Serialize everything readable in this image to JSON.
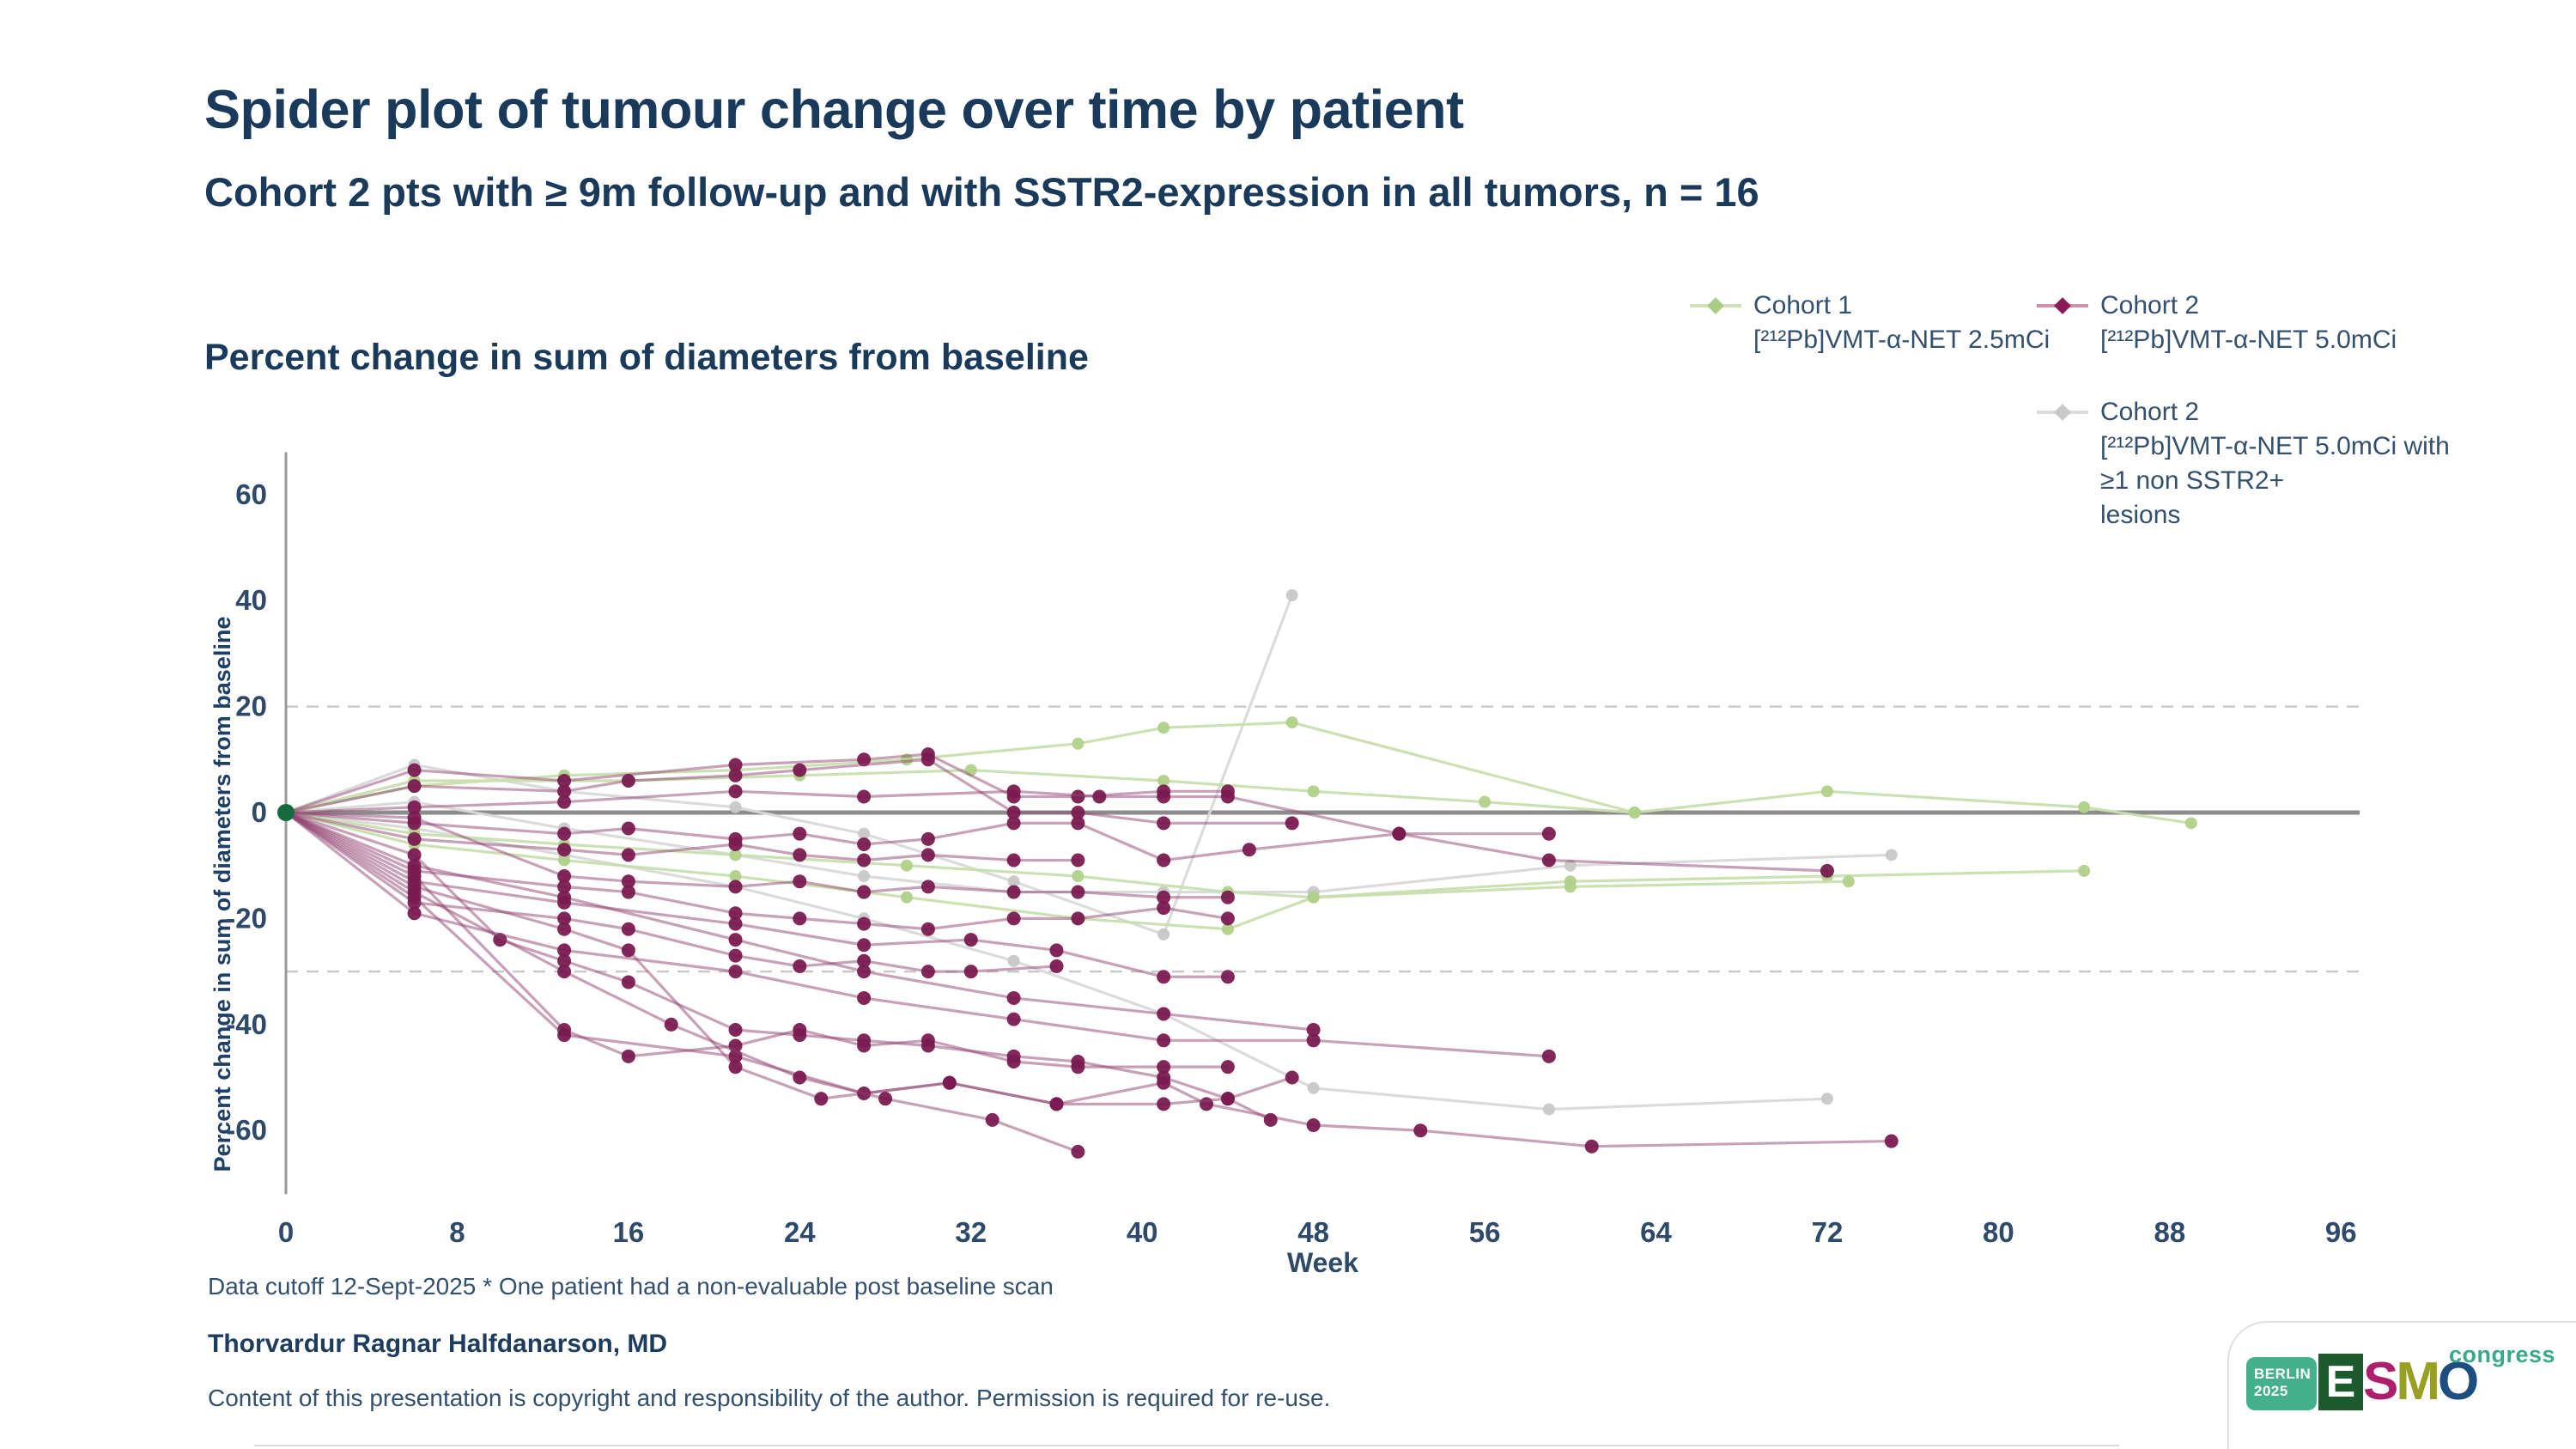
{
  "slide": {
    "title": "Spider plot of tumour change over time by patient",
    "subtitle": "Cohort 2 pts with ≥ 9m follow-up and with SSTR2-expression in all tumors, n = 16",
    "chart_heading": "Percent change in sum of diameters from baseline"
  },
  "legend": {
    "items": [
      {
        "name": "Cohort 1",
        "desc": "[²¹²Pb]VMT-α-NET 2.5mCi",
        "marker": {
          "line": "#cfe3b8",
          "dot": "#a9cc85"
        }
      },
      {
        "name": "Cohort 2",
        "desc": "[²¹²Pb]VMT-α-NET 5.0mCi",
        "marker": {
          "line": "#cf8fae",
          "dot": "#8d1a56"
        }
      },
      {
        "name": "Cohort 2",
        "desc": "[²¹²Pb]VMT-α-NET 5.0mCi with\n≥1 non SSTR2+\nlesions",
        "marker": {
          "line": "#dcdcdc",
          "dot": "#c9c9c9"
        }
      }
    ]
  },
  "footer": {
    "footnote": "Data cutoff 12-Sept-2025 * One patient had a non-evaluable post baseline scan",
    "author": "Thorvardur Ragnar Halfdanarson, MD",
    "copyright": "Content of this presentation is copyright and responsibility of the author. Permission is required for re-use."
  },
  "logo": {
    "badge_line1": "BERLIN",
    "badge_line2": "2025",
    "esmo_letters": [
      {
        "ch": "E",
        "color": "#ffffff",
        "bg": "#1d5a2e"
      },
      {
        "ch": "S",
        "color": "#ad1f6d"
      },
      {
        "ch": "M",
        "color": "#97a023"
      },
      {
        "ch": "O",
        "color": "#1c4e80"
      }
    ],
    "congress": "congress"
  },
  "chart_data": {
    "type": "line",
    "title": "Percent change in sum of diameters from baseline",
    "xlabel": "Week",
    "ylabel": "Percent change in sum of diameters from baseline",
    "xlim": [
      0,
      97
    ],
    "ylim": [
      -72,
      68
    ],
    "x_ticks": [
      0,
      8,
      16,
      24,
      32,
      40,
      48,
      56,
      64,
      72,
      80,
      88,
      96
    ],
    "y_ticks": [
      60,
      40,
      20,
      0,
      -20,
      -40,
      -60
    ],
    "reference_lines_dashed": [
      20,
      -30
    ],
    "zero_line": 0,
    "grid": "off",
    "legend_position": "top-right",
    "baseline_marker": {
      "week": 0,
      "value": 0,
      "color": "#156b3d"
    },
    "groups": [
      {
        "name": "Cohort 2 [212Pb]VMT-α-NET 5.0mCi with ≥1 non SSTR2+ lesions",
        "line_color": "#d9d9d9",
        "dot_color": "#c8c8c8",
        "line_opacity": 0.95,
        "series": [
          [
            [
              0,
              0
            ],
            [
              6,
              9
            ],
            [
              13,
              4
            ],
            [
              21,
              1
            ],
            [
              27,
              -4
            ],
            [
              34,
              -13
            ],
            [
              41,
              -23
            ],
            [
              47,
              41
            ]
          ],
          [
            [
              0,
              0
            ],
            [
              6,
              -3
            ],
            [
              13,
              -8
            ],
            [
              21,
              -14
            ],
            [
              27,
              -20
            ],
            [
              34,
              -28
            ],
            [
              41,
              -38
            ],
            [
              48,
              -52
            ],
            [
              59,
              -56
            ],
            [
              72,
              -54
            ]
          ],
          [
            [
              0,
              0
            ],
            [
              6,
              2
            ],
            [
              13,
              -3
            ],
            [
              21,
              -8
            ],
            [
              27,
              -12
            ],
            [
              34,
              -15
            ],
            [
              41,
              -15
            ],
            [
              48,
              -15
            ],
            [
              60,
              -10
            ],
            [
              75,
              -8
            ]
          ]
        ]
      },
      {
        "name": "Cohort 1 [212Pb]VMT-α-NET 2.5mCi",
        "line_color": "#c8dfae",
        "dot_color": "#b0d189",
        "line_opacity": 0.95,
        "series": [
          [
            [
              0,
              0
            ],
            [
              6,
              5
            ],
            [
              13,
              7
            ],
            [
              21,
              8
            ],
            [
              29,
              10
            ],
            [
              37,
              13
            ],
            [
              41,
              16
            ],
            [
              47,
              17
            ],
            [
              63,
              0
            ],
            [
              72,
              4
            ],
            [
              84,
              1
            ],
            [
              89,
              -2
            ]
          ],
          [
            [
              0,
              0
            ],
            [
              6,
              6
            ],
            [
              16,
              6
            ],
            [
              24,
              7
            ],
            [
              32,
              8
            ],
            [
              41,
              6
            ],
            [
              48,
              4
            ],
            [
              56,
              2
            ],
            [
              63,
              0
            ]
          ],
          [
            [
              0,
              0
            ],
            [
              6,
              -4
            ],
            [
              13,
              -6
            ],
            [
              21,
              -8
            ],
            [
              29,
              -10
            ],
            [
              37,
              -12
            ],
            [
              44,
              -15
            ],
            [
              48,
              -16
            ],
            [
              60,
              -13
            ],
            [
              72,
              -12
            ],
            [
              84,
              -11
            ]
          ],
          [
            [
              0,
              0
            ],
            [
              6,
              -6
            ],
            [
              13,
              -9
            ],
            [
              21,
              -12
            ],
            [
              29,
              -16
            ],
            [
              37,
              -20
            ],
            [
              44,
              -22
            ],
            [
              48,
              -16
            ],
            [
              60,
              -14
            ],
            [
              73,
              -13
            ]
          ]
        ]
      },
      {
        "name": "Cohort 2 [212Pb]VMT-α-NET 5.0mCi",
        "line_color": "#91416f",
        "dot_color": "#7a1b50",
        "line_opacity": 0.5,
        "series": [
          [
            [
              0,
              0
            ],
            [
              6,
              8
            ],
            [
              13,
              6
            ],
            [
              21,
              9
            ],
            [
              27,
              10
            ],
            [
              30,
              11
            ],
            [
              34,
              3
            ],
            [
              37,
              3
            ],
            [
              41,
              4
            ],
            [
              44,
              4
            ]
          ],
          [
            [
              0,
              0
            ],
            [
              6,
              5
            ],
            [
              13,
              4
            ],
            [
              16,
              6
            ],
            [
              21,
              7
            ],
            [
              24,
              8
            ],
            [
              30,
              10
            ],
            [
              34,
              0
            ],
            [
              37,
              0
            ],
            [
              41,
              -2
            ],
            [
              47,
              -2
            ]
          ],
          [
            [
              0,
              0
            ],
            [
              6,
              1
            ],
            [
              13,
              2
            ],
            [
              21,
              4
            ],
            [
              27,
              3
            ],
            [
              34,
              4
            ],
            [
              38,
              3
            ],
            [
              41,
              3
            ],
            [
              44,
              3
            ],
            [
              52,
              -4
            ],
            [
              59,
              -4
            ]
          ],
          [
            [
              0,
              0
            ],
            [
              6,
              -2
            ],
            [
              13,
              -4
            ],
            [
              16,
              -3
            ],
            [
              21,
              -5
            ],
            [
              24,
              -4
            ],
            [
              27,
              -6
            ],
            [
              30,
              -5
            ],
            [
              34,
              -2
            ],
            [
              37,
              -2
            ],
            [
              41,
              -9
            ],
            [
              45,
              -7
            ],
            [
              52,
              -4
            ],
            [
              59,
              -9
            ],
            [
              72,
              -11
            ]
          ],
          [
            [
              0,
              0
            ],
            [
              6,
              -5
            ],
            [
              13,
              -7
            ],
            [
              16,
              -8
            ],
            [
              21,
              -6
            ],
            [
              24,
              -8
            ],
            [
              27,
              -9
            ],
            [
              30,
              -8
            ],
            [
              34,
              -9
            ],
            [
              37,
              -9
            ]
          ],
          [
            [
              0,
              0
            ],
            [
              6,
              -1
            ],
            [
              13,
              -12
            ],
            [
              16,
              -13
            ],
            [
              21,
              -14
            ],
            [
              24,
              -13
            ],
            [
              27,
              -15
            ],
            [
              30,
              -14
            ],
            [
              34,
              -15
            ],
            [
              37,
              -15
            ],
            [
              41,
              -16
            ],
            [
              44,
              -16
            ]
          ],
          [
            [
              0,
              0
            ],
            [
              6,
              -11
            ],
            [
              13,
              -14
            ],
            [
              16,
              -15
            ],
            [
              21,
              -19
            ],
            [
              24,
              -20
            ],
            [
              27,
              -21
            ],
            [
              30,
              -22
            ],
            [
              34,
              -20
            ],
            [
              37,
              -20
            ],
            [
              41,
              -18
            ],
            [
              44,
              -20
            ]
          ],
          [
            [
              0,
              0
            ],
            [
              6,
              -13
            ],
            [
              13,
              -17
            ],
            [
              21,
              -21
            ],
            [
              27,
              -25
            ],
            [
              32,
              -24
            ],
            [
              36,
              -26
            ],
            [
              41,
              -31
            ],
            [
              44,
              -31
            ]
          ],
          [
            [
              0,
              0
            ],
            [
              6,
              -17
            ],
            [
              13,
              -20
            ],
            [
              16,
              -22
            ],
            [
              21,
              -27
            ],
            [
              24,
              -29
            ],
            [
              27,
              -28
            ],
            [
              30,
              -30
            ],
            [
              32,
              -30
            ],
            [
              36,
              -29
            ]
          ],
          [
            [
              0,
              0
            ],
            [
              6,
              -10
            ],
            [
              13,
              -16
            ],
            [
              21,
              -24
            ],
            [
              27,
              -30
            ],
            [
              34,
              -35
            ],
            [
              41,
              -38
            ],
            [
              48,
              -41
            ]
          ],
          [
            [
              0,
              0
            ],
            [
              6,
              -12
            ],
            [
              13,
              -41
            ],
            [
              16,
              -46
            ],
            [
              21,
              -44
            ],
            [
              24,
              -41
            ],
            [
              27,
              -44
            ],
            [
              30,
              -43
            ],
            [
              34,
              -47
            ],
            [
              37,
              -48
            ],
            [
              41,
              -48
            ],
            [
              44,
              -48
            ]
          ],
          [
            [
              0,
              0
            ],
            [
              6,
              -8
            ],
            [
              10,
              -24
            ],
            [
              13,
              -28
            ],
            [
              16,
              -32
            ],
            [
              21,
              -41
            ],
            [
              24,
              -42
            ],
            [
              27,
              -43
            ],
            [
              30,
              -44
            ],
            [
              34,
              -46
            ],
            [
              37,
              -47
            ],
            [
              41,
              -50
            ],
            [
              44,
              -54
            ],
            [
              47,
              -50
            ]
          ],
          [
            [
              0,
              0
            ],
            [
              6,
              -14
            ],
            [
              13,
              -22
            ],
            [
              16,
              -26
            ],
            [
              21,
              -48
            ],
            [
              25,
              -54
            ],
            [
              31,
              -51
            ],
            [
              36,
              -55
            ],
            [
              41,
              -51
            ],
            [
              43,
              -55
            ],
            [
              48,
              -59
            ],
            [
              53,
              -60
            ],
            [
              61,
              -63
            ],
            [
              75,
              -62
            ]
          ],
          [
            [
              0,
              0
            ],
            [
              6,
              -19
            ],
            [
              13,
              -26
            ],
            [
              21,
              -30
            ],
            [
              27,
              -35
            ],
            [
              34,
              -39
            ],
            [
              41,
              -43
            ],
            [
              48,
              -43
            ],
            [
              59,
              -46
            ]
          ],
          [
            [
              0,
              0
            ],
            [
              6,
              -16
            ],
            [
              13,
              -42
            ],
            [
              21,
              -46
            ],
            [
              27,
              -53
            ],
            [
              31,
              -51
            ],
            [
              36,
              -55
            ],
            [
              41,
              -55
            ],
            [
              44,
              -54
            ],
            [
              46,
              -58
            ]
          ],
          [
            [
              0,
              0
            ],
            [
              6,
              -15
            ],
            [
              13,
              -30
            ],
            [
              18,
              -40
            ],
            [
              24,
              -50
            ],
            [
              28,
              -54
            ],
            [
              33,
              -58
            ],
            [
              37,
              -64
            ]
          ]
        ]
      }
    ]
  }
}
